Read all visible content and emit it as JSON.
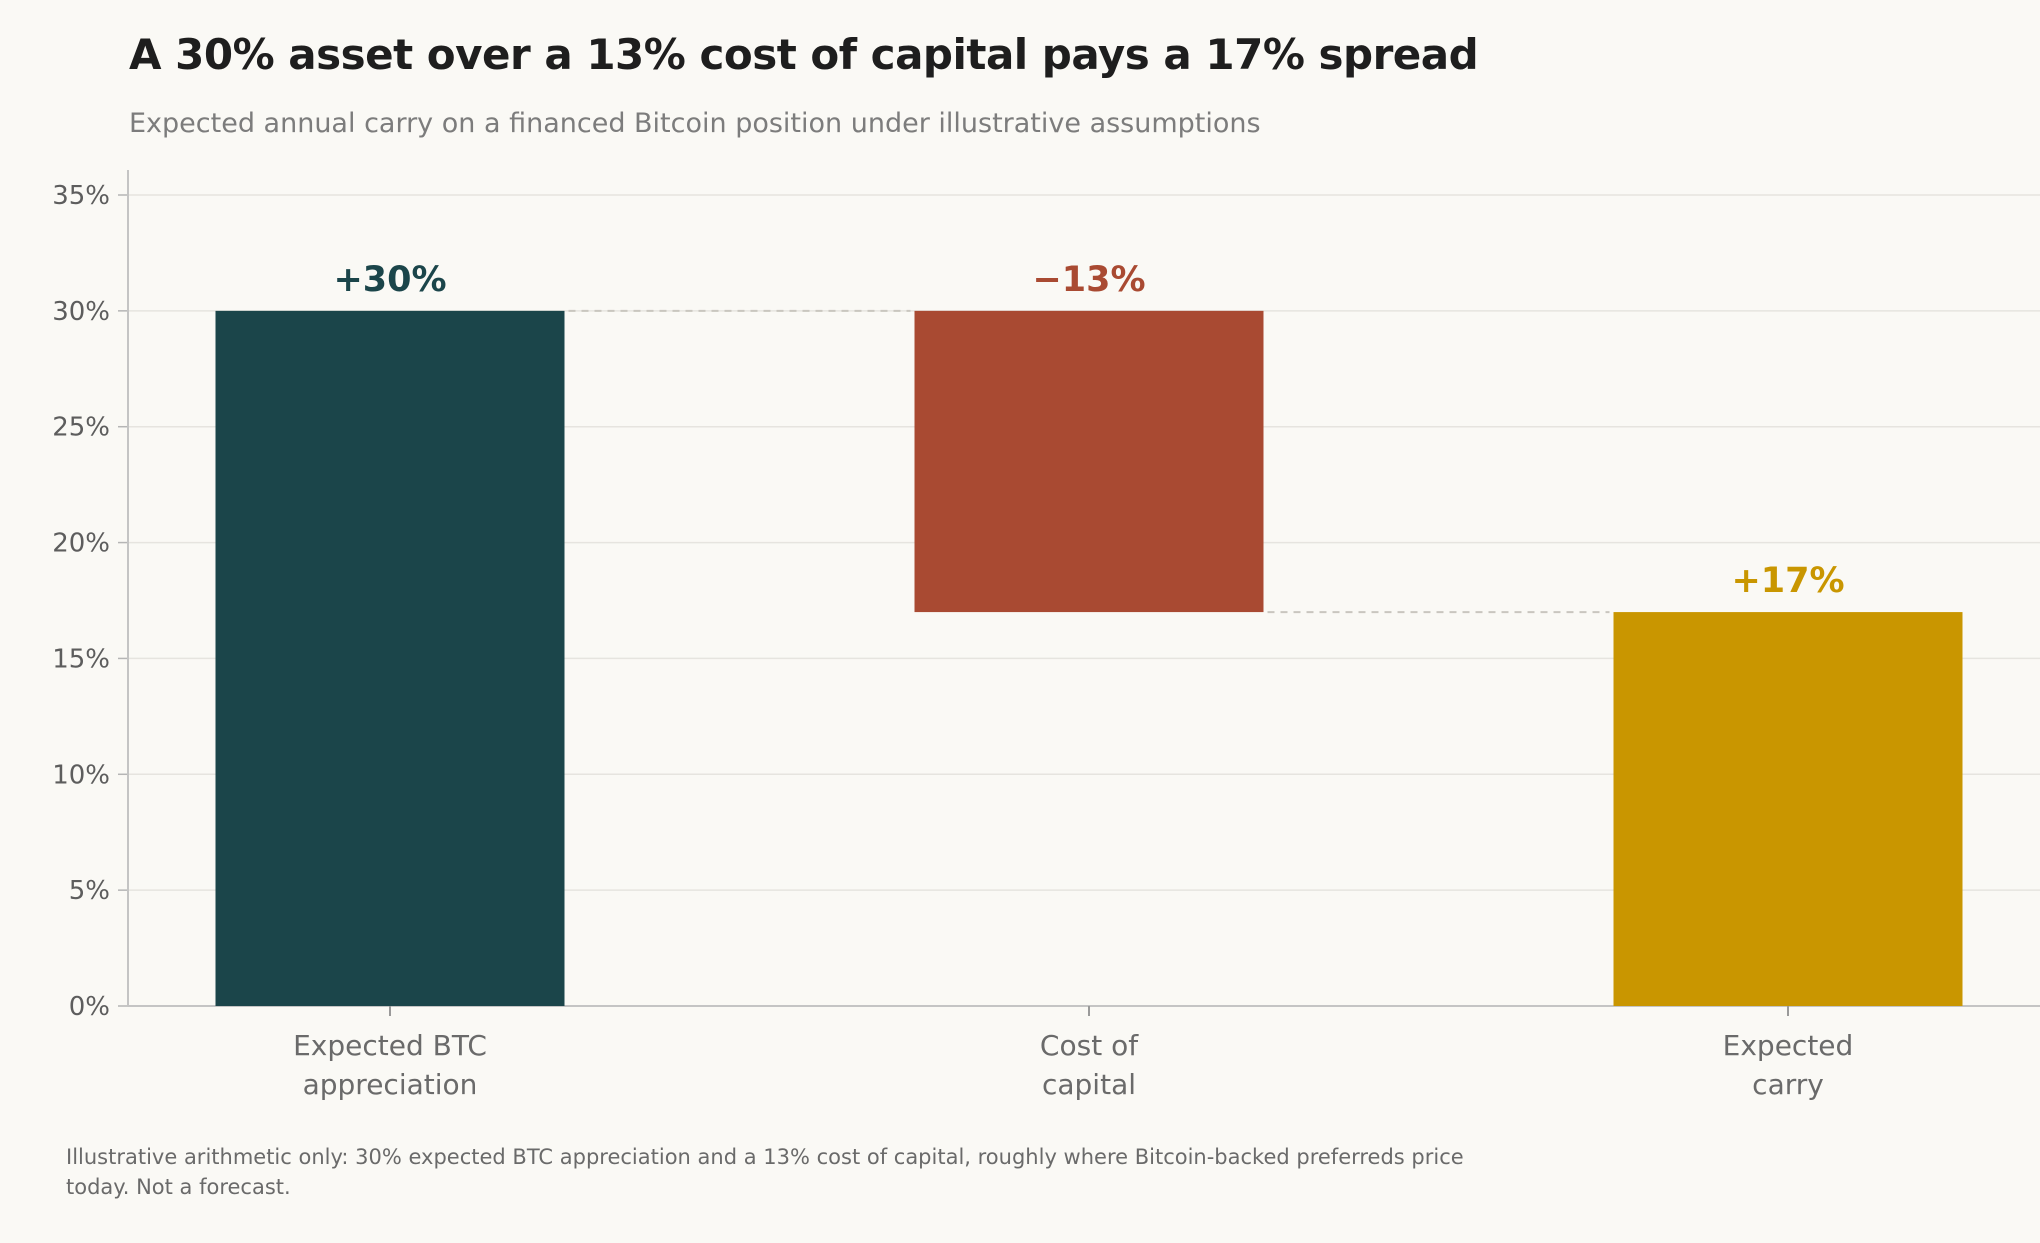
{
  "chart_data": {
    "type": "bar",
    "title": "A 30% asset over a 13% cost of capital pays a 17% spread",
    "subtitle": "Expected annual carry on a financed Bitcoin position under illustrative assumptions",
    "categories": [
      [
        "Expected BTC",
        "appreciation"
      ],
      [
        "Cost of",
        "capital"
      ],
      [
        "Expected",
        "carry"
      ]
    ],
    "bars": [
      {
        "start": 0,
        "end": 30,
        "label": "+30%",
        "color": "#1b454a"
      },
      {
        "start": 17,
        "end": 30,
        "label": "−13%",
        "color": "#a94a32"
      },
      {
        "start": 0,
        "end": 17,
        "label": "+17%",
        "color": "#c99600"
      }
    ],
    "ylim": [
      0,
      35
    ],
    "yticks": [
      "0%",
      "5%",
      "10%",
      "15%",
      "20%",
      "25%",
      "30%",
      "35%"
    ],
    "grid": true,
    "connectors": true
  },
  "footnote": "Illustrative arithmetic only: 30% expected BTC appreciation and a 13% cost of capital, roughly where Bitcoin-backed preferreds price today. Not a forecast."
}
